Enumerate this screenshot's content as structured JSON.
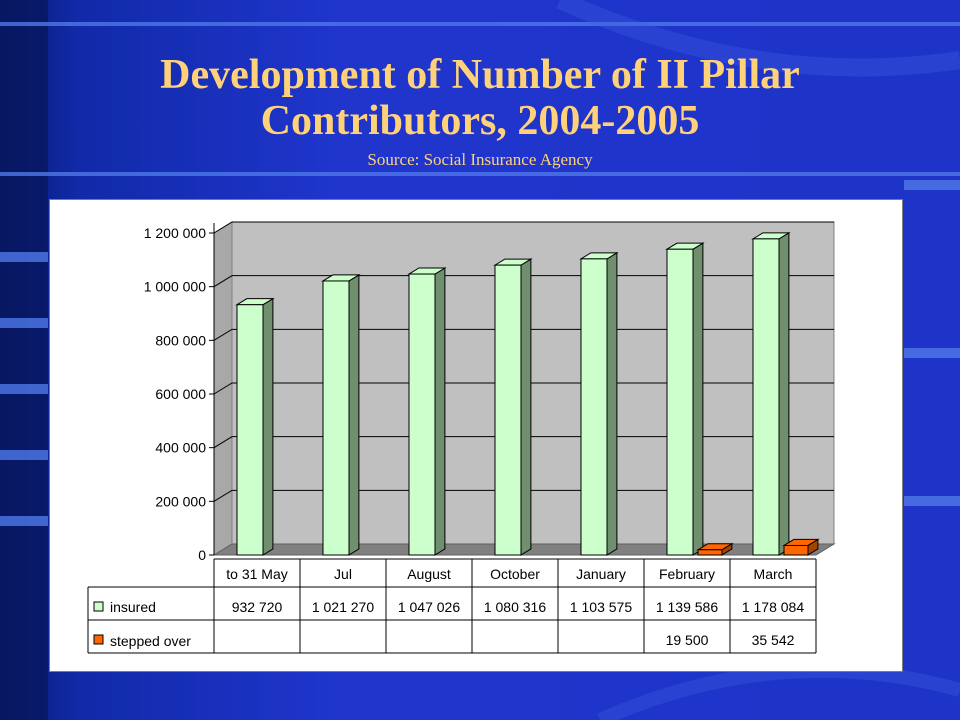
{
  "slide": {
    "title_line1": "Development of Number of II Pillar",
    "title_line2": "Contributors, 2004-2005",
    "source": "Source: Social Insurance Agency"
  },
  "colors": {
    "background": "#1d33c8",
    "title": "#ffd27a",
    "insured": "#ccffcc",
    "stepped_over": "#ff6600"
  },
  "chart_data": {
    "type": "bar",
    "title": "",
    "xlabel": "",
    "ylabel": "",
    "ylim": [
      0,
      1200000
    ],
    "yticks": [
      0,
      200000,
      400000,
      600000,
      800000,
      1000000,
      1200000
    ],
    "ytick_labels": [
      "0",
      "200 000",
      "400 000",
      "600 000",
      "800 000",
      "1 000 000",
      "1 200 000"
    ],
    "grid": true,
    "three_d": true,
    "legend_placement": "data-table",
    "categories": [
      "to 31 May",
      "Jul",
      "August",
      "October",
      "January",
      "February",
      "March"
    ],
    "series": [
      {
        "name": "insured",
        "color": "#ccffcc",
        "values": [
          932720,
          1021270,
          1047026,
          1080316,
          1103575,
          1139586,
          1178084
        ],
        "labels": [
          "932 720",
          "1 021 270",
          "1 047 026",
          "1 080 316",
          "1 103 575",
          "1 139 586",
          "1 178 084"
        ]
      },
      {
        "name": "stepped over",
        "color": "#ff6600",
        "values": [
          null,
          null,
          null,
          null,
          null,
          19500,
          35542
        ],
        "labels": [
          "",
          "",
          "",
          "",
          "",
          "19 500",
          "35 542"
        ]
      }
    ]
  }
}
